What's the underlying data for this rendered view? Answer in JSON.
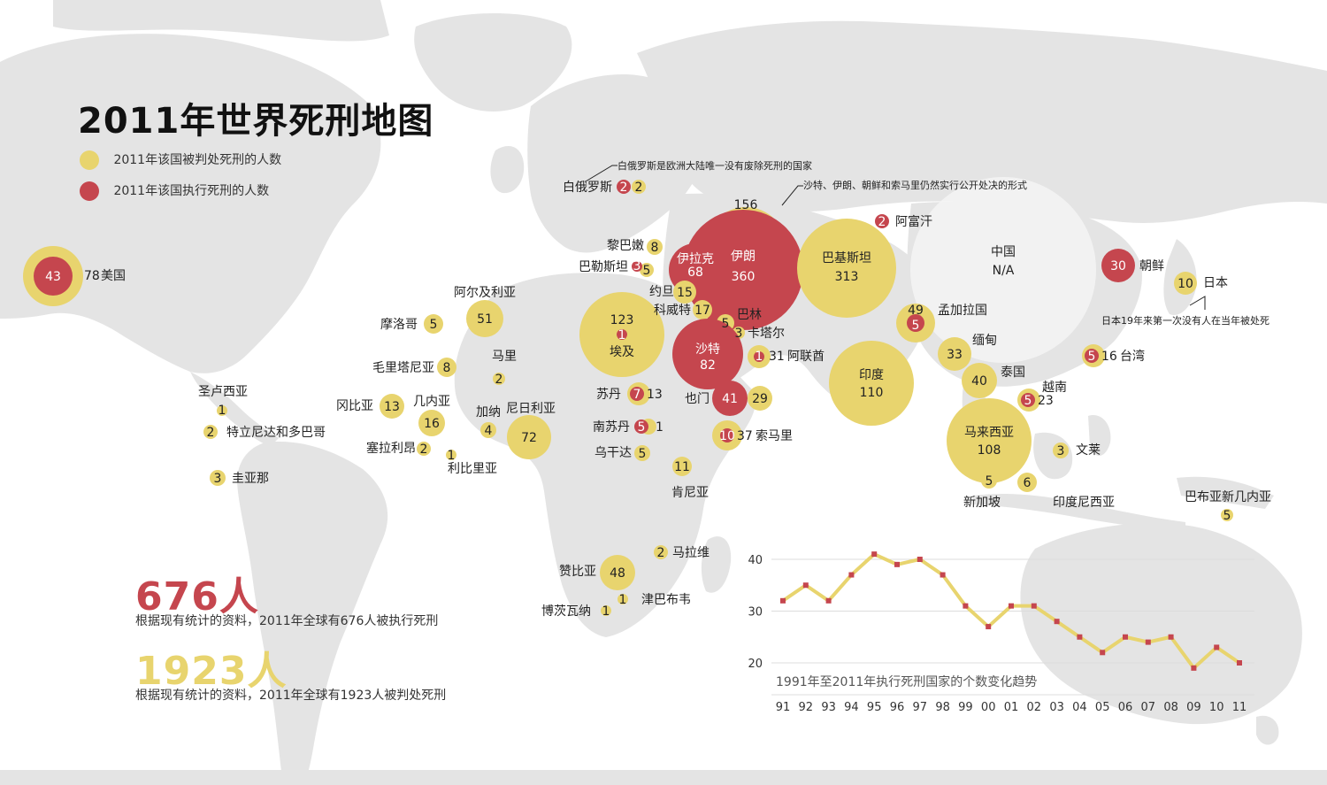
{
  "title": "2011年世界死刑地图",
  "legend": {
    "sentenced": {
      "label": "2011年该国被判处死刑的人数",
      "color": "#e8d46e"
    },
    "executed": {
      "label": "2011年该国执行死刑的人数",
      "color": "#c5464e"
    }
  },
  "stats": {
    "executed_total": "676人",
    "executed_note": "根据现有统计的资料，2011年全球有676人被执行死刑",
    "sentenced_total": "1923人",
    "sentenced_note": "根据现有统计的资料，2011年全球有1923人被判处死刑"
  },
  "notes": {
    "belarus": "白俄罗斯是欧洲大陆唯一没有废除死刑的国家",
    "public": "沙特、伊朗、朝鲜和索马里仍然实行公开处决的形式",
    "japan": "日本19年来第一次没有人在当年被处死"
  },
  "countries": [
    {
      "name": "美国",
      "sentenced": "78",
      "executed": "43"
    },
    {
      "name": "白俄罗斯",
      "sentenced": "2",
      "executed": "2"
    },
    {
      "name": "黎巴嫩",
      "sentenced": "8"
    },
    {
      "name": "巴勒斯坦",
      "sentenced": "5",
      "executed": "3"
    },
    {
      "name": "伊拉克",
      "sentenced": "",
      "executed": "68"
    },
    {
      "name": "伊朗",
      "sentenced": "156",
      "executed": "360"
    },
    {
      "name": "约旦",
      "sentenced": "15"
    },
    {
      "name": "科威特",
      "sentenced": "17"
    },
    {
      "name": "巴林",
      "sentenced": "5"
    },
    {
      "name": "卡塔尔",
      "sentenced": "3"
    },
    {
      "name": "沙特",
      "executed": "82"
    },
    {
      "name": "阿联酋",
      "sentenced": "31",
      "executed": "1"
    },
    {
      "name": "巴基斯坦",
      "sentenced": "313"
    },
    {
      "name": "阿富汗",
      "executed": "2"
    },
    {
      "name": "中国",
      "sentenced": "N/A"
    },
    {
      "name": "朝鲜",
      "executed": "30"
    },
    {
      "name": "日本",
      "sentenced": "10"
    },
    {
      "name": "孟加拉国",
      "sentenced": "49",
      "executed": "5"
    },
    {
      "name": "缅甸",
      "sentenced": "33"
    },
    {
      "name": "泰国",
      "sentenced": "40"
    },
    {
      "name": "台湾",
      "sentenced": "16",
      "executed": "5"
    },
    {
      "name": "越南",
      "sentenced": "23",
      "executed": "5"
    },
    {
      "name": "印度",
      "sentenced": "110"
    },
    {
      "name": "马来西亚",
      "sentenced": "108"
    },
    {
      "name": "新加坡",
      "sentenced": "5"
    },
    {
      "name": "印度尼西亚",
      "sentenced": "6"
    },
    {
      "name": "文莱",
      "sentenced": "3"
    },
    {
      "name": "巴布亚新几内亚",
      "sentenced": "5"
    },
    {
      "name": "阿尔及利亚",
      "sentenced": "51"
    },
    {
      "name": "摩洛哥",
      "sentenced": "5"
    },
    {
      "name": "埃及",
      "sentenced": "123",
      "executed": "1"
    },
    {
      "name": "毛里塔尼亚",
      "sentenced": "8"
    },
    {
      "name": "马里",
      "sentenced": "2"
    },
    {
      "name": "冈比亚",
      "sentenced": "13"
    },
    {
      "name": "几内亚",
      "sentenced": "16"
    },
    {
      "name": "加纳",
      "sentenced": "4"
    },
    {
      "name": "尼日利亚",
      "sentenced": "72"
    },
    {
      "name": "塞拉利昂",
      "sentenced": "2"
    },
    {
      "name": "利比里亚",
      "sentenced": "1"
    },
    {
      "name": "苏丹",
      "sentenced": "13",
      "executed": "7"
    },
    {
      "name": "南苏丹",
      "sentenced": "1",
      "executed": "5"
    },
    {
      "name": "乌干达",
      "sentenced": "5"
    },
    {
      "name": "也门",
      "sentenced": "29",
      "executed": "41"
    },
    {
      "name": "索马里",
      "sentenced": "37",
      "executed": "10"
    },
    {
      "name": "肯尼亚",
      "sentenced": "11"
    },
    {
      "name": "马拉维",
      "sentenced": "2"
    },
    {
      "name": "赞比亚",
      "sentenced": "48"
    },
    {
      "name": "津巴布韦",
      "sentenced": "1"
    },
    {
      "name": "博茨瓦纳",
      "sentenced": "1"
    },
    {
      "name": "圣卢西亚",
      "sentenced": "1"
    },
    {
      "name": "特立尼达和多巴哥",
      "sentenced": "2"
    },
    {
      "name": "圭亚那",
      "sentenced": "3"
    }
  ],
  "chart_data": {
    "type": "line",
    "title": "1991年至2011年执行死刑国家的个数变化趋势",
    "categories": [
      "91",
      "92",
      "93",
      "94",
      "95",
      "96",
      "97",
      "98",
      "99",
      "00",
      "01",
      "02",
      "03",
      "04",
      "05",
      "06",
      "07",
      "08",
      "09",
      "10",
      "11"
    ],
    "values": [
      32,
      35,
      32,
      37,
      41,
      39,
      40,
      37,
      31,
      27,
      31,
      31,
      28,
      25,
      22,
      25,
      24,
      25,
      19,
      23,
      20
    ],
    "ylim": [
      18,
      42
    ],
    "yticks": [
      "40",
      "30",
      "20"
    ],
    "grid": true,
    "line_color": "#e8d46e",
    "marker_color": "#c5464e"
  }
}
